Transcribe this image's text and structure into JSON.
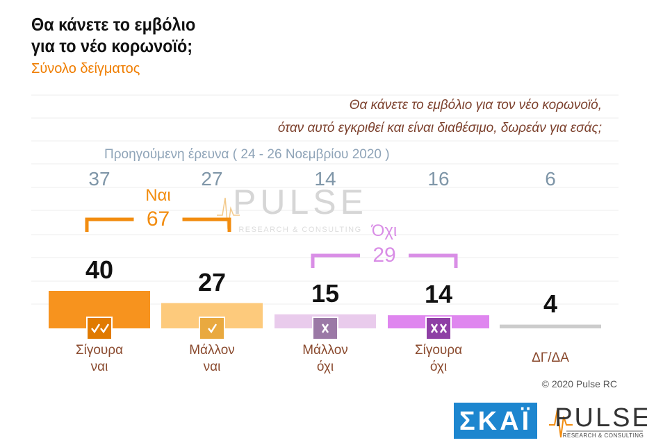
{
  "chart_data": {
    "type": "bar",
    "title": [
      "Θα κάνετε το εμβόλιο",
      "για το νέο κορωνοϊό;"
    ],
    "subtitle": "Σύνολο δείγματος",
    "question": [
      "Θα κάνετε το εμβόλιο για τον νέο κορωνοϊό,",
      "όταν αυτό εγκριθεί και είναι διαθέσιμο, δωρεάν για εσάς;"
    ],
    "categories": [
      [
        "Σίγουρα",
        "ναι"
      ],
      [
        "Μάλλον",
        "ναι"
      ],
      [
        "Μάλλον",
        "όχι"
      ],
      [
        "Σίγουρα",
        "όχι"
      ],
      [
        "ΔΓ/ΔΑ"
      ]
    ],
    "values": [
      40,
      27,
      15,
      14,
      4
    ],
    "colors": [
      "#f7931e",
      "#fdca7c",
      "#e9cbec",
      "#df86ef",
      "#cccccc"
    ],
    "previous": {
      "label": "Προηγούμενη έρευνα  ( 24 - 26  Νοεμβρίου  2020 )",
      "values": [
        37,
        27,
        14,
        16,
        6
      ]
    },
    "groups": [
      {
        "name": "Ναι",
        "value": 67,
        "color": "#f28c0f"
      },
      {
        "name": "Όχι",
        "value": 29,
        "color": "#d98ee6"
      }
    ],
    "footer": "© 2020 Pulse RC",
    "watermark": {
      "name": "PULSE",
      "tagline": "RESEARCH & CONSULTING"
    },
    "logos": {
      "skai": "ΣΚΑΪ",
      "pulse": "PULSE",
      "pulse_tagline": "RESEARCH & CONSULTING"
    }
  }
}
